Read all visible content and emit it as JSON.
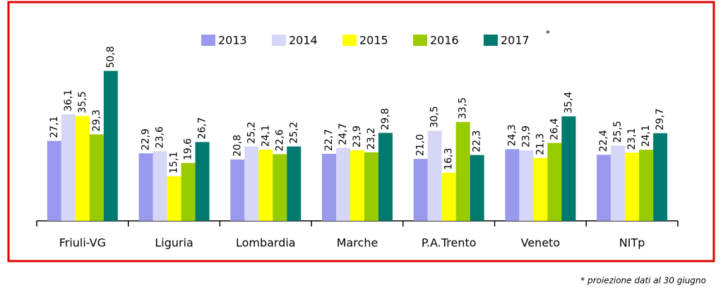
{
  "chart_data": {
    "type": "bar",
    "categories": [
      "Friuli-VG",
      "Liguria",
      "Lombardia",
      "Marche",
      "P.A.Trento",
      "Veneto",
      "NITp"
    ],
    "series": [
      {
        "name": "2013",
        "color": "#9999ee",
        "values": [
          27.1,
          22.9,
          20.8,
          22.7,
          21.0,
          24.3,
          22.4
        ],
        "value_labels": [
          "27,1",
          "22,9",
          "20,8",
          "22,7",
          "21,0",
          "24,3",
          "22,4"
        ]
      },
      {
        "name": "2014",
        "color": "#d6d6f7",
        "values": [
          36.1,
          23.6,
          25.2,
          24.7,
          30.5,
          23.9,
          25.5
        ],
        "value_labels": [
          "36,1",
          "23,6",
          "25,2",
          "24,7",
          "30,5",
          "23,9",
          "25,5"
        ]
      },
      {
        "name": "2015",
        "color": "#ffff00",
        "values": [
          35.5,
          15.1,
          24.1,
          23.9,
          16.3,
          21.3,
          23.1
        ],
        "value_labels": [
          "35,5",
          "15,1",
          "24,1",
          "23,9",
          "16,3",
          "21,3",
          "23,1"
        ]
      },
      {
        "name": "2016",
        "color": "#99cc00",
        "values": [
          29.3,
          19.6,
          22.6,
          23.2,
          33.5,
          26.4,
          24.1
        ],
        "value_labels": [
          "29,3",
          "19,6",
          "22,6",
          "23,2",
          "33,5",
          "26,4",
          "24,1"
        ]
      },
      {
        "name": "2017",
        "color": "#007a6e",
        "values": [
          50.8,
          26.7,
          25.2,
          29.8,
          22.3,
          35.4,
          29.7
        ],
        "value_labels": [
          "50,8",
          "26,7",
          "25,2",
          "29,8",
          "22,3",
          "35,4",
          "29,7"
        ]
      }
    ],
    "legend_marker": "*",
    "footnote": "* proiezione dati al 30 giugno",
    "ylim": [
      0,
      60
    ]
  }
}
